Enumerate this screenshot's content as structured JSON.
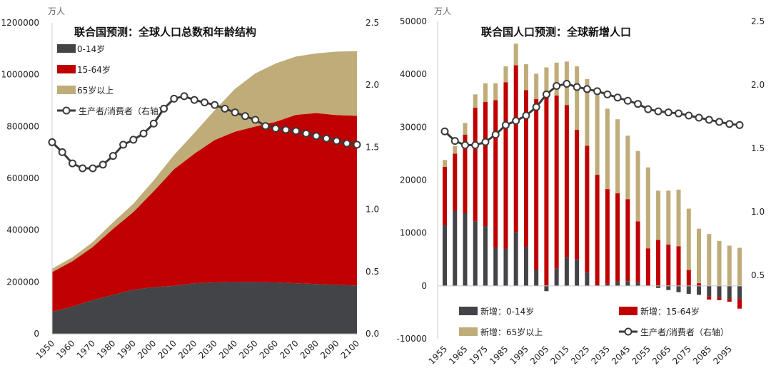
{
  "colors": {
    "age_0_14": "#434447",
    "age_15_64": "#c00000",
    "age_65_plus": "#bfac79",
    "ratio_line": "#3b3b3b"
  },
  "chart_data": [
    {
      "type": "area",
      "title": "联合国预测：全球人口总数和年龄结构",
      "unit_left": "万人",
      "x_ticks": [
        "1950",
        "1960",
        "1970",
        "1980",
        "1990",
        "2000",
        "2010",
        "2020",
        "2030",
        "2040",
        "2050",
        "2060",
        "2070",
        "2080",
        "2090",
        "2100"
      ],
      "y_left_ticks": [
        "0",
        "200000",
        "400000",
        "600000",
        "800000",
        "1000000",
        "1200000"
      ],
      "y_right_ticks": [
        "0.0",
        "0.5",
        "1.0",
        "1.5",
        "2.0",
        "2.5"
      ],
      "ylim_left": [
        0,
        1200000
      ],
      "ylim_right": [
        0,
        2.5
      ],
      "legend_position": "top-left",
      "x": [
        1950,
        1960,
        1970,
        1980,
        1990,
        2000,
        2010,
        2020,
        2030,
        2040,
        2050,
        2060,
        2070,
        2080,
        2090,
        2100
      ],
      "series": [
        {
          "name": "0-14岁",
          "color_key": "age_0_14",
          "values": [
            85000,
            105000,
            130000,
            150000,
            170000,
            180000,
            185000,
            195000,
            198000,
            200000,
            200000,
            198000,
            195000,
            192000,
            189000,
            186000
          ]
        },
        {
          "name": "15-64岁",
          "color_key": "age_15_64",
          "values": [
            153000,
            175000,
            205000,
            255000,
            300000,
            370000,
            450000,
            500000,
            550000,
            580000,
            600000,
            620000,
            650000,
            660000,
            655000,
            655000
          ]
        },
        {
          "name": "65岁以上",
          "color_key": "age_65_plus",
          "values": [
            13000,
            15000,
            19000,
            25000,
            32000,
            42000,
            55000,
            80000,
            115000,
            165000,
            205000,
            225000,
            225000,
            230000,
            245000,
            250000
          ]
        }
      ],
      "ratio_series": {
        "name": "生产者/消费者（右轴）",
        "x": [
          1950,
          1955,
          1960,
          1965,
          1970,
          1975,
          1980,
          1985,
          1990,
          1995,
          2000,
          2005,
          2010,
          2015,
          2020,
          2025,
          2030,
          2035,
          2040,
          2045,
          2050,
          2055,
          2060,
          2065,
          2070,
          2075,
          2080,
          2085,
          2090,
          2095,
          2100
        ],
        "values": [
          1.54,
          1.46,
          1.37,
          1.33,
          1.33,
          1.36,
          1.43,
          1.52,
          1.56,
          1.61,
          1.69,
          1.81,
          1.89,
          1.91,
          1.88,
          1.86,
          1.84,
          1.81,
          1.78,
          1.75,
          1.72,
          1.67,
          1.65,
          1.64,
          1.63,
          1.61,
          1.59,
          1.57,
          1.55,
          1.53,
          1.52
        ]
      }
    },
    {
      "type": "bar",
      "title": "联合国人口预测：全球新增人口",
      "unit_left": "万人",
      "x_ticks": [
        "1955",
        "1965",
        "1975",
        "1985",
        "1995",
        "2005",
        "2015",
        "2025",
        "2035",
        "2045",
        "2055",
        "2065",
        "2075",
        "2085",
        "2095"
      ],
      "y_left_ticks": [
        "-10000",
        "0",
        "10000",
        "20000",
        "30000",
        "40000",
        "50000"
      ],
      "y_right_ticks": [
        "",
        "0.5",
        "1.0",
        "1.5",
        "2.0",
        "2.5"
      ],
      "ylim_left": [
        -10000,
        50000
      ],
      "ylim_right": [
        -0.5,
        2.5
      ],
      "legend_position": "bottom",
      "categories": [
        1955,
        1960,
        1965,
        1970,
        1975,
        1980,
        1985,
        1990,
        1995,
        2000,
        2005,
        2010,
        2015,
        2020,
        2025,
        2030,
        2035,
        2040,
        2045,
        2050,
        2055,
        2060,
        2065,
        2070,
        2075,
        2080,
        2085,
        2090,
        2095,
        2100
      ],
      "series": [
        {
          "name": "新增：0-14岁",
          "color_key": "age_0_14",
          "values": [
            11500,
            14200,
            13800,
            12200,
            11300,
            7200,
            7000,
            10200,
            7400,
            3000,
            -1000,
            3300,
            5400,
            5000,
            2500,
            200,
            400,
            800,
            900,
            700,
            100,
            -400,
            -800,
            -1200,
            -1500,
            -1700,
            -2000,
            -2200,
            -2500,
            -2500
          ]
        },
        {
          "name": "新增：15-64岁",
          "color_key": "age_15_64",
          "values": [
            11000,
            10800,
            14800,
            21500,
            23500,
            27900,
            31500,
            31500,
            29600,
            32300,
            35600,
            32700,
            28800,
            24500,
            24000,
            20800,
            17900,
            16700,
            15500,
            11500,
            7000,
            8700,
            7800,
            7500,
            3000,
            500,
            -600,
            -500,
            -500,
            -1800
          ]
        },
        {
          "name": "新增：65岁以上",
          "color_key": "age_65_plus",
          "values": [
            1300,
            1400,
            2200,
            2500,
            3500,
            3200,
            3000,
            4100,
            4900,
            4800,
            5700,
            6200,
            8200,
            12000,
            12600,
            15400,
            15200,
            14000,
            12000,
            13300,
            15300,
            9300,
            10200,
            10700,
            11600,
            10300,
            9800,
            8500,
            7600,
            7200
          ]
        }
      ],
      "ratio_series": {
        "name": "生产者/消费者（右轴）",
        "x": [
          1955,
          1960,
          1965,
          1970,
          1975,
          1980,
          1985,
          1990,
          1995,
          2000,
          2005,
          2010,
          2015,
          2020,
          2025,
          2030,
          2035,
          2040,
          2045,
          2050,
          2055,
          2060,
          2065,
          2070,
          2075,
          2080,
          2085,
          2090,
          2095,
          2100
        ],
        "values": [
          1.46,
          1.37,
          1.33,
          1.33,
          1.36,
          1.43,
          1.52,
          1.56,
          1.61,
          1.69,
          1.81,
          1.89,
          1.91,
          1.88,
          1.86,
          1.84,
          1.81,
          1.78,
          1.75,
          1.72,
          1.67,
          1.65,
          1.64,
          1.63,
          1.61,
          1.59,
          1.57,
          1.55,
          1.53,
          1.52
        ]
      }
    }
  ]
}
